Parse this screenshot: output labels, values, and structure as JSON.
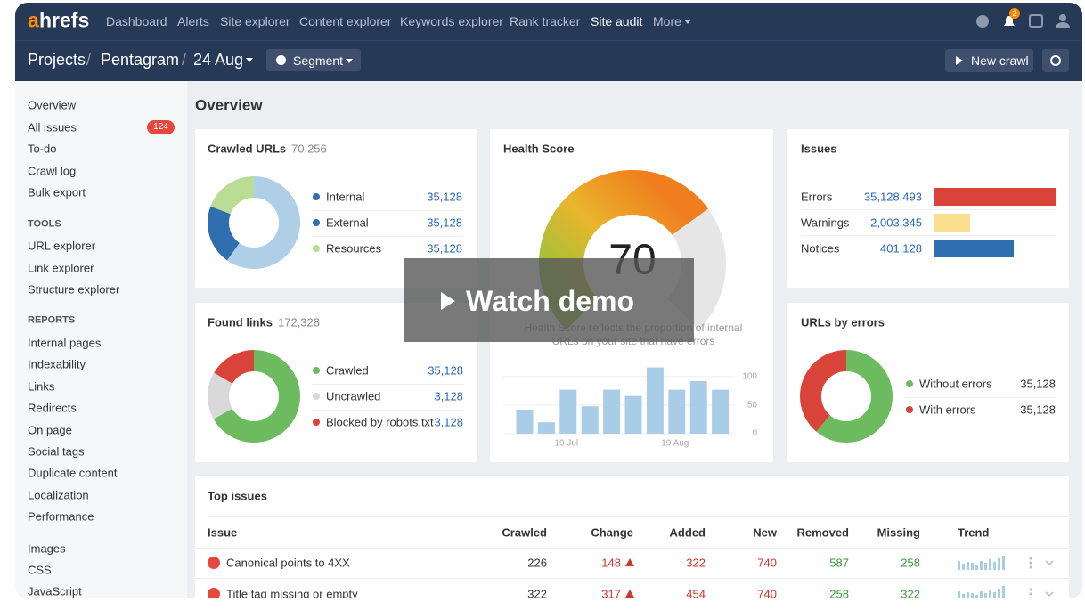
{
  "nav": {
    "logo_a": "a",
    "logo_rest": "hrefs",
    "items": [
      "Dashboard",
      "Alerts",
      "Site explorer",
      "Content explorer",
      "Keywords explorer",
      "Rank tracker",
      "Site audit",
      "More"
    ],
    "notification_count": 2
  },
  "subnav": {
    "breadcrumb": [
      "Projects",
      "Pentagram",
      "24 Aug"
    ],
    "separator": "/",
    "segment": "Segment",
    "new_crawl": "New crawl"
  },
  "sidebar": {
    "top": [
      "Overview",
      "All issues",
      "To-do",
      "Crawl log",
      "Bulk export"
    ],
    "badge": 124,
    "tools_heading": "TOOLS",
    "tools": [
      "URL explorer",
      "Link explorer",
      "Structure explorer"
    ],
    "reports_heading": "REPORTS",
    "reports": [
      "Internal pages",
      "Indexability",
      "Links",
      "Redirects",
      "On page",
      "Social tags",
      "Duplicate content",
      "Localization",
      "Performance"
    ],
    "resources": [
      "Images",
      "CSS",
      "JavaScript"
    ]
  },
  "overview_title": "Overview",
  "crawled_urls": {
    "title": "Crawled URLs",
    "total": "70,256",
    "rows": [
      {
        "label": "Internal",
        "value": "35,128",
        "color": "#2f6fb0"
      },
      {
        "label": "External",
        "value": "35,128",
        "color": "#2f6fb0"
      },
      {
        "label": "Resources",
        "value": "35,128",
        "color": "#b9dd95"
      }
    ]
  },
  "health_score": {
    "title": "Health Score",
    "score": 70,
    "score_range": [
      0,
      100
    ],
    "description": "Health Score reflects the proportion of internal URLs on your site that have errors",
    "chart": {
      "values": [
        42,
        20,
        77,
        48,
        77,
        66,
        116,
        77,
        92,
        77
      ],
      "categories": [
        null,
        null,
        "19 Jul",
        null,
        null,
        null,
        null,
        "19 Aug",
        null,
        null
      ],
      "ylim": [
        0,
        120
      ],
      "yticks": [
        0,
        50,
        100
      ],
      "color": "#a9cde6"
    }
  },
  "issues": {
    "title": "Issues",
    "rows": [
      {
        "label": "Errors",
        "value": "35,128,493",
        "color": "#d9433a"
      },
      {
        "label": "Warnings",
        "value": "2,003,345",
        "color": "#f9df8f"
      },
      {
        "label": "Notices",
        "value": "401,128",
        "color": "#2f6fb0"
      }
    ]
  },
  "found_links": {
    "title": "Found links",
    "total": "172,328",
    "rows": [
      {
        "label": "Crawled",
        "value": "35,128",
        "color": "#6cbb5f"
      },
      {
        "label": "Uncrawled",
        "value": "3,128",
        "color": "#d9d9d9"
      },
      {
        "label": "Blocked by robots.txt",
        "value": "3,128",
        "color": "#d9433a"
      }
    ]
  },
  "urls_by_errors": {
    "title": "URLs by errors",
    "rows": [
      {
        "label": "Without errors",
        "value": "35,128",
        "color": "#6cbb5f"
      },
      {
        "label": "With errors",
        "value": "35,128",
        "color": "#d9433a"
      }
    ]
  },
  "top_issues": {
    "title": "Top issues",
    "columns": [
      "Issue",
      "Crawled",
      "Change",
      "Added",
      "New",
      "Removed",
      "Missing",
      "Trend"
    ],
    "rows": [
      [
        "Canonical points to 4XX",
        226,
        148,
        322,
        740,
        587,
        258
      ],
      [
        "Title tag missing or empty",
        322,
        317,
        454,
        740,
        258,
        322
      ]
    ]
  },
  "watch_demo": "Watch demo"
}
